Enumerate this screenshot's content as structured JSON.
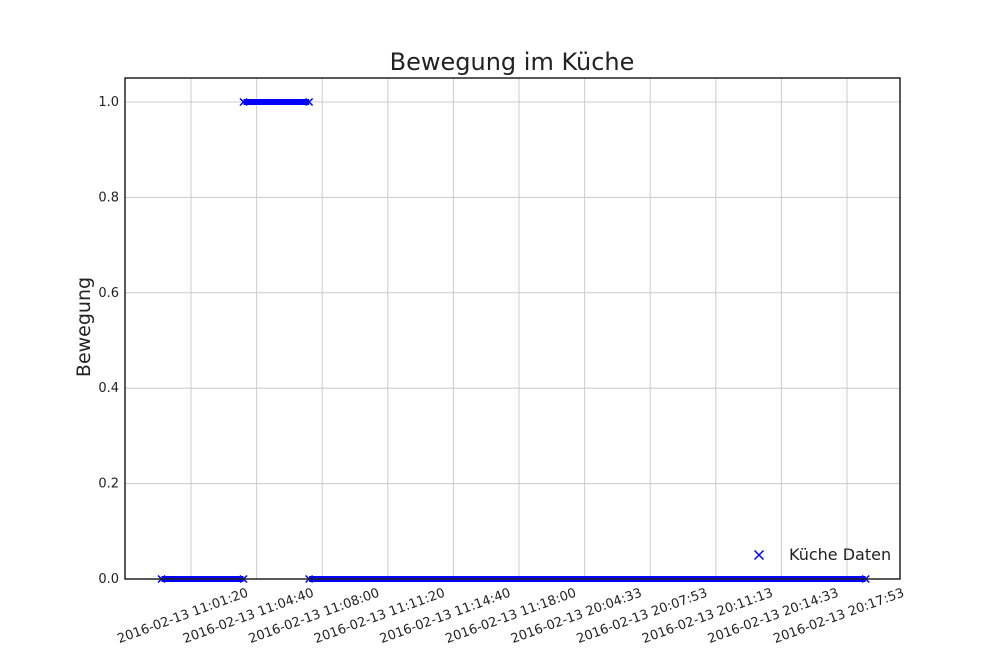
{
  "chart_data": {
    "type": "scatter",
    "title": "Bewegung im Küche",
    "xlabel": "",
    "ylabel": "Bewegung",
    "ylim": [
      0.0,
      1.0
    ],
    "y_ticks": [
      "0.0",
      "0.2",
      "0.4",
      "0.6",
      "0.8",
      "1.0"
    ],
    "x_ticks": [
      "2016-02-13 11:01:20",
      "2016-02-13 11:04:40",
      "2016-02-13 11:08:00",
      "2016-02-13 11:11:20",
      "2016-02-13 11:14:40",
      "2016-02-13 11:18:00",
      "2016-02-13 20:04:33",
      "2016-02-13 20:07:53",
      "2016-02-13 20:11:13",
      "2016-02-13 20:14:33",
      "2016-02-13 20:17:53"
    ],
    "grid": true,
    "legend": {
      "placement": "lower-right",
      "entries": [
        "Küche Daten"
      ]
    },
    "colors": {
      "series": "#0000ff",
      "grid": "#cccccc",
      "frame": "#222222"
    },
    "series": [
      {
        "name": "Küche Daten",
        "marker": "x",
        "segments": [
          {
            "x_start": "2016-02-13 10:59:50",
            "x_end": "2016-02-13 11:04:00",
            "y": 0
          },
          {
            "x_start": "2016-02-13 11:04:00",
            "x_end": "2016-02-13 11:07:20",
            "y": 1
          },
          {
            "x_start": "2016-02-13 11:07:20",
            "x_end": "2016-02-13 20:18:50",
            "y": 0
          }
        ]
      }
    ]
  }
}
